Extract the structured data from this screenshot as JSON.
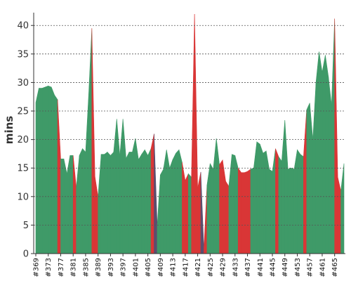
{
  "chart_data": {
    "type": "area",
    "title": "",
    "xlabel": "",
    "ylabel": "mins",
    "ylim": [
      0,
      42
    ],
    "yticks": [
      0,
      5,
      10,
      15,
      20,
      25,
      30,
      35,
      40
    ],
    "grid": true,
    "x_tick_labels": [
      "#369",
      "#373",
      "#377",
      "#381",
      "#385",
      "#389",
      "#393",
      "#397",
      "#401",
      "#405",
      "#409",
      "#413",
      "#417",
      "#421",
      "#425",
      "#429",
      "#433",
      "#437",
      "#441",
      "#445",
      "#449",
      "#453",
      "#457",
      "#461",
      "#465"
    ],
    "colors": {
      "success": "#3f9a68",
      "failure": "#d93636",
      "aborted": "#5b4e6e",
      "grid": "#555555",
      "axis": "#333333"
    },
    "builds": [
      {
        "build": "#369",
        "mins": 26.5,
        "status": "success"
      },
      {
        "build": "#370",
        "mins": 29.0,
        "status": "success"
      },
      {
        "build": "#371",
        "mins": 29.0,
        "status": "success"
      },
      {
        "build": "#372",
        "mins": 29.2,
        "status": "success"
      },
      {
        "build": "#373",
        "mins": 29.4,
        "status": "success"
      },
      {
        "build": "#374",
        "mins": 29.2,
        "status": "success"
      },
      {
        "build": "#375",
        "mins": 27.8,
        "status": "success"
      },
      {
        "build": "#376",
        "mins": 27.0,
        "status": "success"
      },
      {
        "build": "#377",
        "mins": 16.6,
        "status": "failure"
      },
      {
        "build": "#378",
        "mins": 16.6,
        "status": "success"
      },
      {
        "build": "#379",
        "mins": 14.0,
        "status": "success"
      },
      {
        "build": "#380",
        "mins": 17.2,
        "status": "success"
      },
      {
        "build": "#381",
        "mins": 17.2,
        "status": "success"
      },
      {
        "build": "#382",
        "mins": 11.6,
        "status": "failure"
      },
      {
        "build": "#383",
        "mins": 17.2,
        "status": "success"
      },
      {
        "build": "#384",
        "mins": 18.4,
        "status": "success"
      },
      {
        "build": "#385",
        "mins": 17.8,
        "status": "success"
      },
      {
        "build": "#386",
        "mins": 28.0,
        "status": "success"
      },
      {
        "build": "#387",
        "mins": 39.5,
        "status": "success"
      },
      {
        "build": "#388",
        "mins": 13.5,
        "status": "failure"
      },
      {
        "build": "#389",
        "mins": 10.0,
        "status": "failure"
      },
      {
        "build": "#390",
        "mins": 17.4,
        "status": "success"
      },
      {
        "build": "#391",
        "mins": 17.4,
        "status": "success"
      },
      {
        "build": "#392",
        "mins": 17.8,
        "status": "success"
      },
      {
        "build": "#393",
        "mins": 17.2,
        "status": "success"
      },
      {
        "build": "#394",
        "mins": 17.8,
        "status": "success"
      },
      {
        "build": "#395",
        "mins": 23.6,
        "status": "success"
      },
      {
        "build": "#396",
        "mins": 17.2,
        "status": "success"
      },
      {
        "build": "#397",
        "mins": 23.6,
        "status": "success"
      },
      {
        "build": "#398",
        "mins": 16.7,
        "status": "success"
      },
      {
        "build": "#399",
        "mins": 17.8,
        "status": "success"
      },
      {
        "build": "#400",
        "mins": 17.8,
        "status": "success"
      },
      {
        "build": "#401",
        "mins": 20.2,
        "status": "success"
      },
      {
        "build": "#402",
        "mins": 16.5,
        "status": "success"
      },
      {
        "build": "#403",
        "mins": 17.4,
        "status": "success"
      },
      {
        "build": "#404",
        "mins": 18.2,
        "status": "success"
      },
      {
        "build": "#405",
        "mins": 17.2,
        "status": "success"
      },
      {
        "build": "#406",
        "mins": 18.4,
        "status": "success"
      },
      {
        "build": "#407",
        "mins": 21.0,
        "status": "failure"
      },
      {
        "build": "#408",
        "mins": 4.8,
        "status": "aborted"
      },
      {
        "build": "#409",
        "mins": 13.8,
        "status": "success"
      },
      {
        "build": "#410",
        "mins": 14.8,
        "status": "success"
      },
      {
        "build": "#411",
        "mins": 18.2,
        "status": "success"
      },
      {
        "build": "#412",
        "mins": 15.0,
        "status": "success"
      },
      {
        "build": "#413",
        "mins": 16.5,
        "status": "success"
      },
      {
        "build": "#414",
        "mins": 17.6,
        "status": "success"
      },
      {
        "build": "#415",
        "mins": 18.2,
        "status": "success"
      },
      {
        "build": "#416",
        "mins": 16.0,
        "status": "success"
      },
      {
        "build": "#417",
        "mins": 12.8,
        "status": "failure"
      },
      {
        "build": "#418",
        "mins": 14.0,
        "status": "failure"
      },
      {
        "build": "#419",
        "mins": 13.4,
        "status": "success"
      },
      {
        "build": "#420",
        "mins": 42.0,
        "status": "failure"
      },
      {
        "build": "#421",
        "mins": 11.5,
        "status": "failure"
      },
      {
        "build": "#422",
        "mins": 14.3,
        "status": "failure"
      },
      {
        "build": "#423",
        "mins": 0.8,
        "status": "aborted"
      },
      {
        "build": "#424",
        "mins": 12.0,
        "status": "failure"
      },
      {
        "build": "#425",
        "mins": 15.8,
        "status": "success"
      },
      {
        "build": "#426",
        "mins": 14.8,
        "status": "success"
      },
      {
        "build": "#427",
        "mins": 20.2,
        "status": "success"
      },
      {
        "build": "#428",
        "mins": 15.6,
        "status": "success"
      },
      {
        "build": "#429",
        "mins": 16.4,
        "status": "failure"
      },
      {
        "build": "#430",
        "mins": 12.7,
        "status": "failure"
      },
      {
        "build": "#431",
        "mins": 11.8,
        "status": "failure"
      },
      {
        "build": "#432",
        "mins": 17.4,
        "status": "success"
      },
      {
        "build": "#433",
        "mins": 17.2,
        "status": "success"
      },
      {
        "build": "#434",
        "mins": 15.0,
        "status": "success"
      },
      {
        "build": "#435",
        "mins": 14.2,
        "status": "failure"
      },
      {
        "build": "#436",
        "mins": 14.2,
        "status": "failure"
      },
      {
        "build": "#437",
        "mins": 14.4,
        "status": "failure"
      },
      {
        "build": "#438",
        "mins": 14.8,
        "status": "failure"
      },
      {
        "build": "#439",
        "mins": 15.0,
        "status": "success"
      },
      {
        "build": "#440",
        "mins": 19.6,
        "status": "success"
      },
      {
        "build": "#441",
        "mins": 19.2,
        "status": "success"
      },
      {
        "build": "#442",
        "mins": 17.6,
        "status": "success"
      },
      {
        "build": "#443",
        "mins": 18.0,
        "status": "success"
      },
      {
        "build": "#444",
        "mins": 14.8,
        "status": "success"
      },
      {
        "build": "#445",
        "mins": 14.4,
        "status": "success"
      },
      {
        "build": "#446",
        "mins": 18.4,
        "status": "success"
      },
      {
        "build": "#447",
        "mins": 17.0,
        "status": "failure"
      },
      {
        "build": "#448",
        "mins": 16.2,
        "status": "success"
      },
      {
        "build": "#449",
        "mins": 23.4,
        "status": "success"
      },
      {
        "build": "#450",
        "mins": 14.8,
        "status": "success"
      },
      {
        "build": "#451",
        "mins": 15.0,
        "status": "success"
      },
      {
        "build": "#452",
        "mins": 14.8,
        "status": "success"
      },
      {
        "build": "#453",
        "mins": 18.2,
        "status": "success"
      },
      {
        "build": "#454",
        "mins": 17.4,
        "status": "success"
      },
      {
        "build": "#455",
        "mins": 17.0,
        "status": "success"
      },
      {
        "build": "#456",
        "mins": 25.2,
        "status": "failure"
      },
      {
        "build": "#457",
        "mins": 26.4,
        "status": "success"
      },
      {
        "build": "#458",
        "mins": 20.0,
        "status": "success"
      },
      {
        "build": "#459",
        "mins": 30.0,
        "status": "success"
      },
      {
        "build": "#460",
        "mins": 35.4,
        "status": "success"
      },
      {
        "build": "#461",
        "mins": 31.8,
        "status": "success"
      },
      {
        "build": "#462",
        "mins": 34.8,
        "status": "success"
      },
      {
        "build": "#463",
        "mins": 31.0,
        "status": "success"
      },
      {
        "build": "#464",
        "mins": 26.0,
        "status": "success"
      },
      {
        "build": "#465",
        "mins": 41.2,
        "status": "success"
      },
      {
        "build": "#466",
        "mins": 13.4,
        "status": "failure"
      },
      {
        "build": "#467",
        "mins": 11.0,
        "status": "failure"
      },
      {
        "build": "#468",
        "mins": 15.8,
        "status": "success"
      }
    ]
  }
}
